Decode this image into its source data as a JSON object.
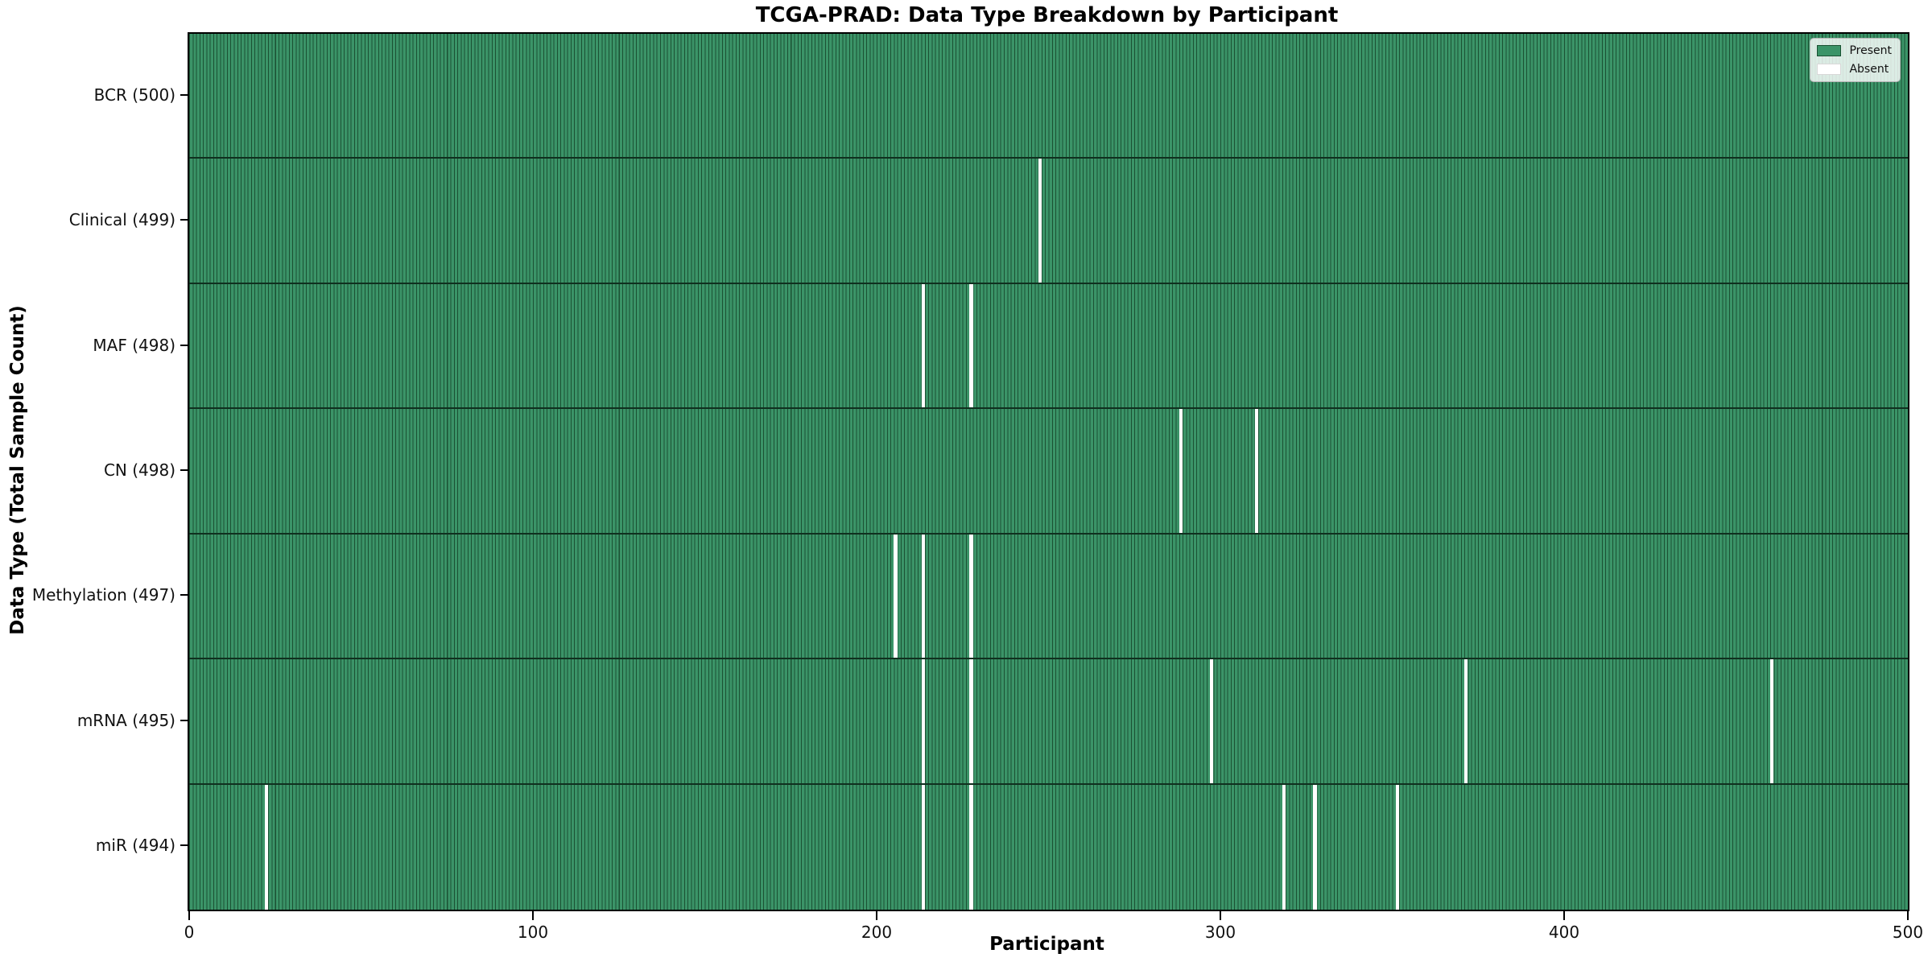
{
  "chart_data": {
    "type": "heatmap",
    "title": "TCGA-PRAD: Data Type Breakdown by Participant",
    "xlabel": "Participant",
    "ylabel": "Data Type (Total Sample Count)",
    "xlim": [
      0,
      500
    ],
    "xticks": [
      0,
      100,
      200,
      300,
      400,
      500
    ],
    "n_participants": 500,
    "grid": false,
    "legend": {
      "position": "upper right",
      "entries": [
        {
          "label": "Present",
          "color": "#3B9468"
        },
        {
          "label": "Absent",
          "color": "#FFFFFF"
        }
      ]
    },
    "rows": [
      {
        "data_type": "BCR",
        "label": "BCR (500)",
        "total": 500,
        "absent_participants": []
      },
      {
        "data_type": "Clinical",
        "label": "Clinical (499)",
        "total": 499,
        "absent_participants": [
          247
        ]
      },
      {
        "data_type": "MAF",
        "label": "MAF (498)",
        "total": 498,
        "absent_participants": [
          213,
          227
        ]
      },
      {
        "data_type": "CN",
        "label": "CN (498)",
        "total": 498,
        "absent_participants": [
          288,
          310
        ]
      },
      {
        "data_type": "Methylation",
        "label": "Methylation (497)",
        "total": 497,
        "absent_participants": [
          205,
          213,
          227
        ]
      },
      {
        "data_type": "mRNA",
        "label": "mRNA (495)",
        "total": 495,
        "absent_participants": [
          213,
          227,
          297,
          371,
          460
        ]
      },
      {
        "data_type": "miR",
        "label": "miR (494)",
        "total": 494,
        "absent_participants": [
          22,
          213,
          227,
          318,
          327,
          351
        ]
      }
    ],
    "colors": {
      "present_fill": "#3B9468",
      "cell_edge": "#1B5133",
      "absent_fill": "#FFFFFF",
      "row_divider": "#10301f",
      "spine": "#000000"
    }
  }
}
